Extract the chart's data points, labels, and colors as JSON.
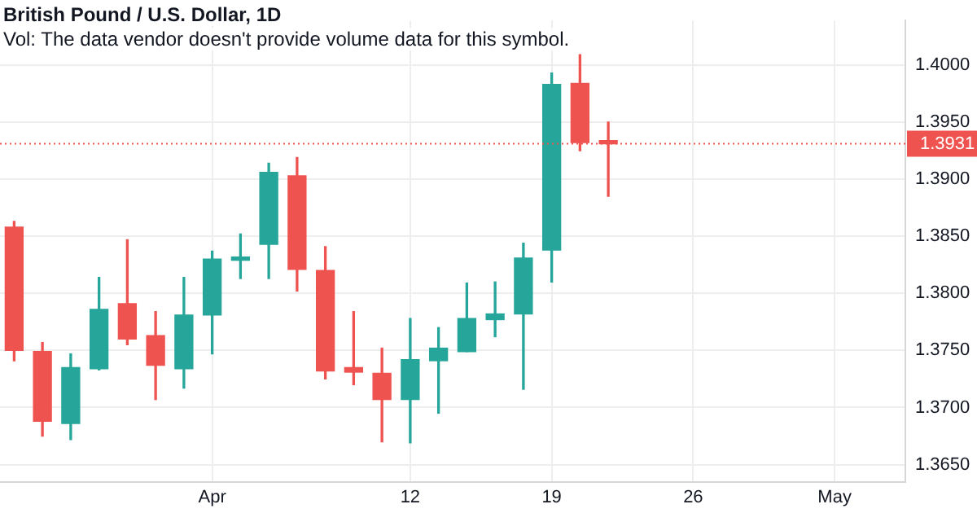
{
  "chart_data": {
    "type": "candlestick",
    "title": "British Pound / U.S. Dollar, 1D",
    "subtitle": "Vol: The data vendor doesn't provide volume data for this symbol.",
    "categories": [
      null,
      null,
      null,
      null,
      null,
      null,
      null,
      "Apr",
      null,
      null,
      null,
      null,
      null,
      null,
      "12",
      null,
      null,
      null,
      null,
      "19",
      null,
      null,
      null,
      null,
      "26",
      null,
      null,
      null,
      null,
      "May",
      null,
      null
    ],
    "ohlc": [
      [
        1.3858,
        1.3863,
        1.3741,
        1.375
      ],
      [
        1.3749,
        1.3757,
        1.3675,
        1.3688
      ],
      [
        1.3686,
        1.3747,
        1.3672,
        1.3735
      ],
      [
        1.3734,
        1.3814,
        1.3733,
        1.3786
      ],
      [
        1.3791,
        1.3847,
        1.3755,
        1.376
      ],
      [
        1.3763,
        1.3784,
        1.3707,
        1.3737
      ],
      [
        1.3734,
        1.3814,
        1.3717,
        1.3781
      ],
      [
        1.3781,
        1.3837,
        1.3747,
        1.383
      ],
      [
        1.3829,
        1.3852,
        1.3813,
        1.3831
      ],
      [
        1.3843,
        1.3914,
        1.3813,
        1.3906
      ],
      [
        1.3903,
        1.3919,
        1.3802,
        1.3821
      ],
      [
        1.382,
        1.3841,
        1.3725,
        1.3732
      ],
      [
        1.3735,
        1.3784,
        1.372,
        1.3731
      ],
      [
        1.373,
        1.3752,
        1.367,
        1.3707
      ],
      [
        1.3707,
        1.3778,
        1.3669,
        1.3742
      ],
      [
        1.3741,
        1.377,
        1.3695,
        1.3752
      ],
      [
        1.3749,
        1.3809,
        1.3749,
        1.3778
      ],
      [
        1.3777,
        1.381,
        1.3762,
        1.3782
      ],
      [
        1.3782,
        1.3844,
        1.3716,
        1.3831
      ],
      [
        1.3838,
        1.3993,
        1.381,
        1.3983
      ],
      [
        1.3984,
        1.4009,
        1.3925,
        1.3932
      ],
      [
        1.3933,
        1.395,
        1.3885,
        1.3931
      ],
      null,
      null,
      null,
      null,
      null,
      null,
      null,
      null,
      null,
      null
    ],
    "colors": [
      "#ef5350",
      "#ef5350",
      "#26a69a",
      "#26a69a",
      "#ef5350",
      "#ef5350",
      "#26a69a",
      "#26a69a",
      "#26a69a",
      "#26a69a",
      "#ef5350",
      "#ef5350",
      "#ef5350",
      "#ef5350",
      "#26a69a",
      "#26a69a",
      "#26a69a",
      "#26a69a",
      "#26a69a",
      "#26a69a",
      "#ef5350",
      "#ef5350",
      null,
      null,
      null,
      null,
      null,
      null,
      null,
      null,
      null,
      null
    ],
    "ylim": [
      1.3635,
      1.4039
    ],
    "yticks": [
      {
        "value": 1.365,
        "label": "1.3650"
      },
      {
        "value": 1.37,
        "label": "1.3700"
      },
      {
        "value": 1.375,
        "label": "1.3750"
      },
      {
        "value": 1.38,
        "label": "1.3800"
      },
      {
        "value": 1.385,
        "label": "1.3850"
      },
      {
        "value": 1.39,
        "label": "1.3900"
      },
      {
        "value": 1.395,
        "label": "1.3950"
      },
      {
        "value": 1.4,
        "label": "1.4000"
      }
    ],
    "grid": true,
    "legend": false,
    "ref_lines": [
      {
        "axis": "y",
        "value": 1.3931,
        "label": "1.3931",
        "color": "#ef5350",
        "line_style": "dotted"
      }
    ]
  }
}
